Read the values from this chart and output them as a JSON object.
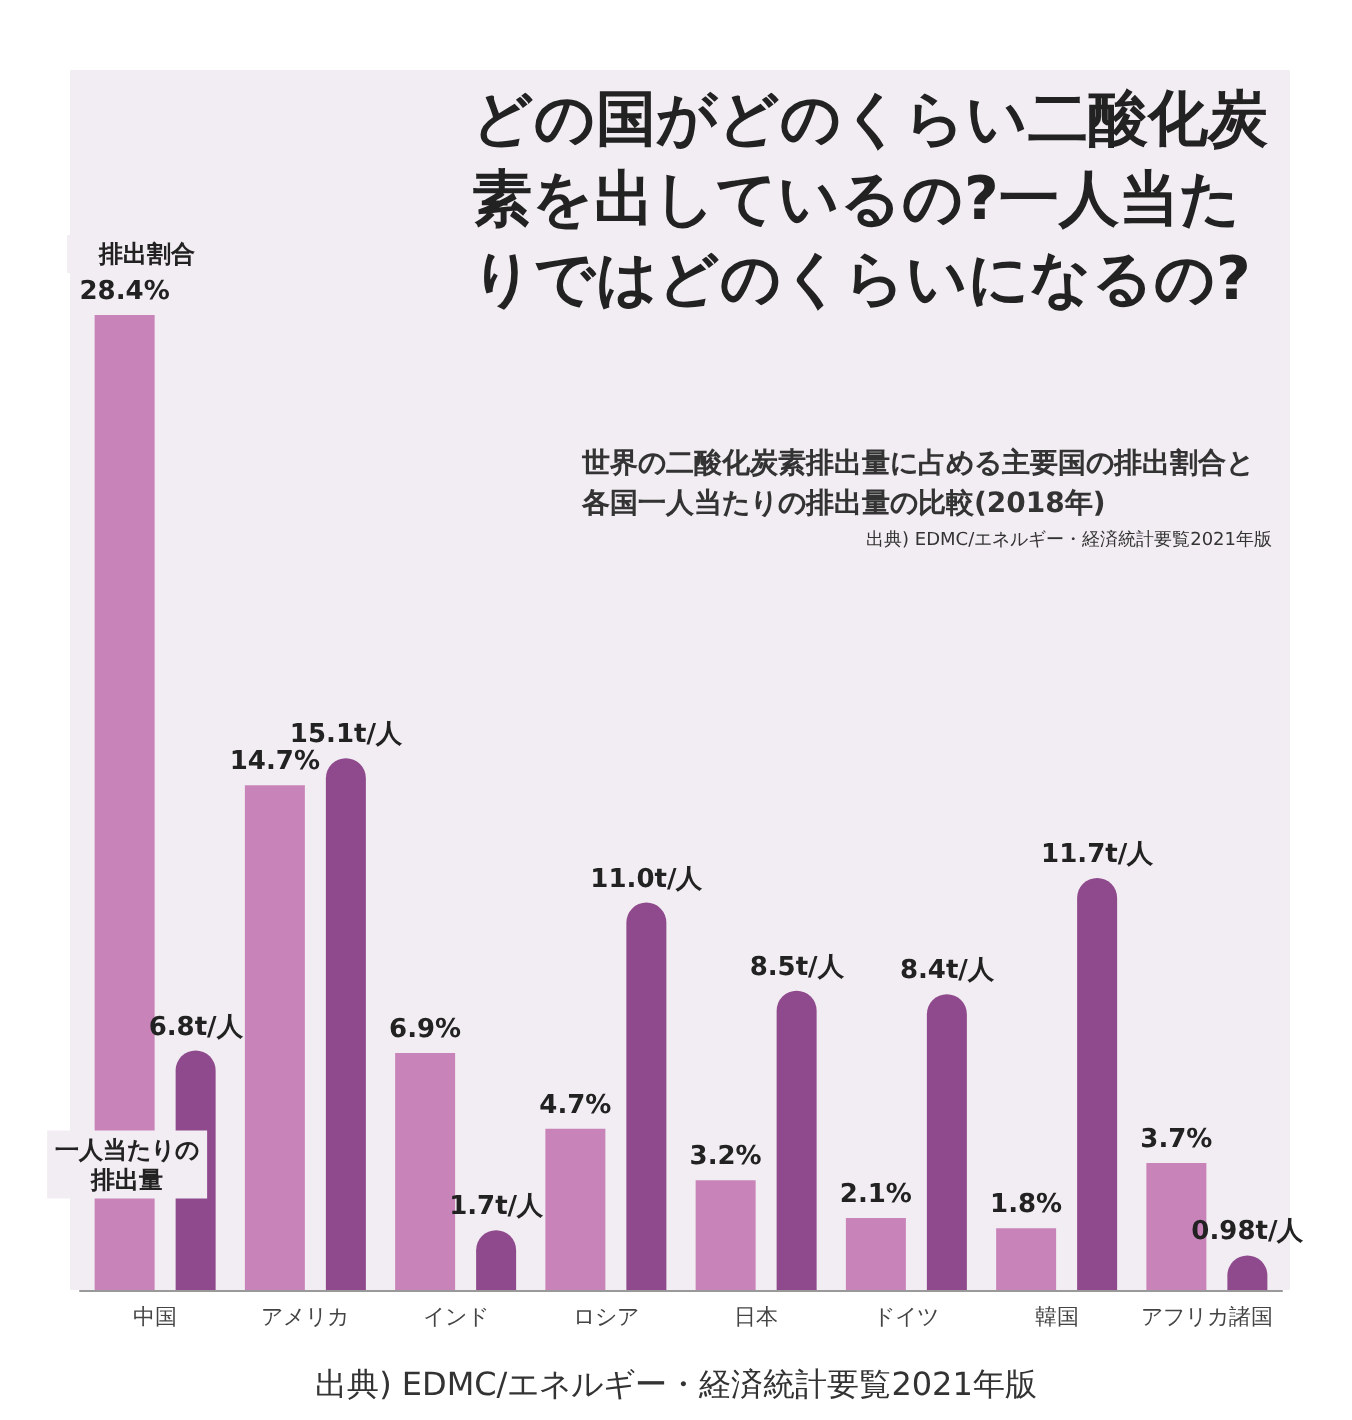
{
  "chart_data": {
    "type": "bar",
    "title": "どの国がどのくらい二酸化炭素を出しているの?一人当たりではどのくらいになるの?",
    "subtitle": "世界の二酸化炭素排出量に占める主要国の排出割合と各国一人当たりの排出量の比較(2018年)",
    "categories": [
      "中国",
      "アメリカ",
      "インド",
      "ロシア",
      "日本",
      "ドイツ",
      "韓国",
      "アフリカ諸国"
    ],
    "series": [
      {
        "name": "排出割合",
        "color": "#c884b8",
        "values": [
          28.4,
          14.7,
          6.9,
          4.7,
          3.2,
          2.1,
          1.8,
          3.7
        ],
        "value_labels": [
          "28.4%",
          "14.7%",
          "6.9%",
          "4.7%",
          "3.2%",
          "2.1%",
          "1.8%",
          "3.7%"
        ]
      },
      {
        "name": "一人当たりの排出量",
        "color": "#8e4a8c",
        "axis": "y2",
        "values": [
          6.8,
          15.1,
          1.7,
          11.0,
          8.5,
          8.4,
          11.7,
          0.98
        ],
        "value_labels": [
          "6.8t/人",
          "15.1t/人",
          "1.7t/人",
          "11.0t/人",
          "8.5t/人",
          "8.4t/人",
          "11.7t/人",
          "0.98t/人"
        ]
      }
    ],
    "tick_labels": "x",
    "legend": false,
    "annotations": [
      "出典) EDMC/エネルギー・経済統計要覧2021年版",
      "出典) EDMC/エネルギー・経済統計要覧2021年版"
    ]
  }
}
